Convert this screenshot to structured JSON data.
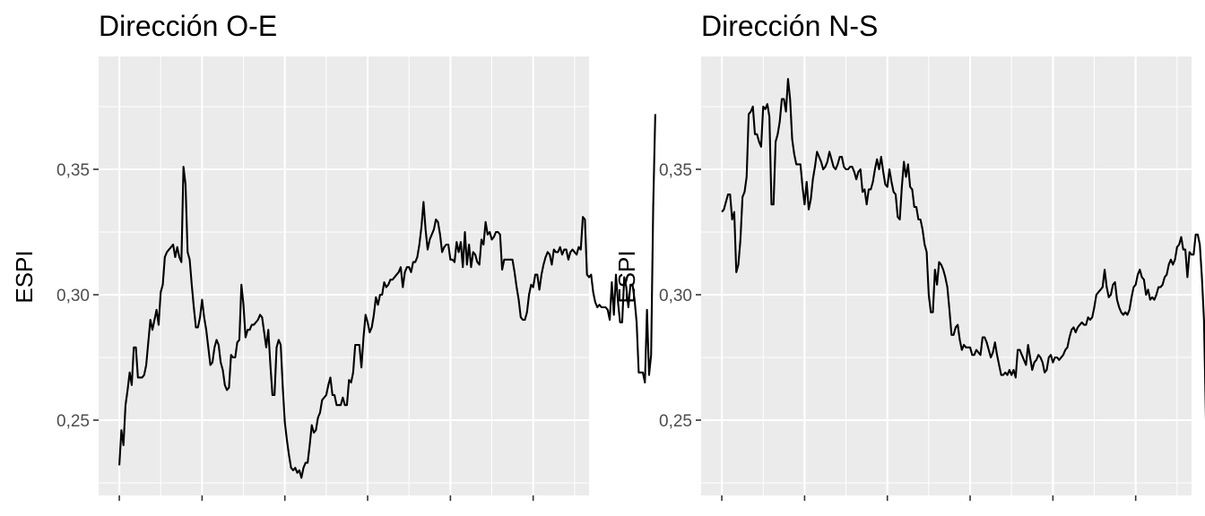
{
  "chart_data": [
    {
      "type": "line",
      "title": "Dirección O-E",
      "xlabel": "",
      "ylabel": "ESPI",
      "xlim": [
        -10,
        227
      ],
      "ylim": [
        0.22,
        0.395
      ],
      "y_ticks": [
        0.25,
        0.3,
        0.35
      ],
      "y_tick_labels": [
        "0,25",
        "0,30",
        "0,35"
      ],
      "x_ticks": [
        0,
        40,
        80,
        120,
        160,
        200
      ],
      "x_tick_labels": [
        "",
        "",
        "",
        "",
        "",
        ""
      ],
      "grid": true,
      "series": [
        {
          "values": [
            0.232,
            0.246,
            0.24,
            0.256,
            0.262,
            0.269,
            0.264,
            0.279,
            0.279,
            0.267,
            0.267,
            0.267,
            0.268,
            0.272,
            0.281,
            0.29,
            0.286,
            0.29,
            0.294,
            0.288,
            0.301,
            0.304,
            0.315,
            0.317,
            0.318,
            0.319,
            0.32,
            0.315,
            0.319,
            0.315,
            0.313,
            0.351,
            0.344,
            0.317,
            0.314,
            0.304,
            0.295,
            0.287,
            0.287,
            0.291,
            0.298,
            0.291,
            0.286,
            0.279,
            0.272,
            0.273,
            0.279,
            0.282,
            0.28,
            0.273,
            0.27,
            0.264,
            0.262,
            0.263,
            0.276,
            0.275,
            0.275,
            0.281,
            0.282,
            0.304,
            0.296,
            0.283,
            0.286,
            0.286,
            0.288,
            0.288,
            0.289,
            0.29,
            0.292,
            0.291,
            0.285,
            0.279,
            0.286,
            0.272,
            0.26,
            0.26,
            0.279,
            0.282,
            0.28,
            0.263,
            0.249,
            0.242,
            0.236,
            0.231,
            0.23,
            0.231,
            0.229,
            0.23,
            0.227,
            0.231,
            0.233,
            0.233,
            0.24,
            0.248,
            0.245,
            0.246,
            0.251,
            0.253,
            0.258,
            0.259,
            0.26,
            0.264,
            0.267,
            0.26,
            0.26,
            0.256,
            0.256,
            0.256,
            0.259,
            0.256,
            0.256,
            0.266,
            0.265,
            0.269,
            0.28,
            0.28,
            0.28,
            0.271,
            0.283,
            0.292,
            0.289,
            0.285,
            0.287,
            0.292,
            0.299,
            0.296,
            0.3,
            0.3,
            0.305,
            0.303,
            0.304,
            0.306,
            0.306,
            0.307,
            0.308,
            0.309,
            0.311,
            0.303,
            0.309,
            0.311,
            0.311,
            0.309,
            0.313,
            0.313,
            0.315,
            0.32,
            0.327,
            0.337,
            0.326,
            0.318,
            0.322,
            0.324,
            0.326,
            0.33,
            0.329,
            0.324,
            0.317,
            0.319,
            0.32,
            0.32,
            0.314,
            0.314,
            0.313,
            0.321,
            0.317,
            0.321,
            0.311,
            0.325,
            0.312,
            0.32,
            0.311,
            0.317,
            0.316,
            0.313,
            0.312,
            0.322,
            0.32,
            0.329,
            0.324,
            0.325,
            0.322,
            0.323,
            0.325,
            0.325,
            0.324,
            0.31,
            0.314,
            0.314,
            0.314,
            0.314,
            0.314,
            0.309,
            0.303,
            0.298,
            0.291,
            0.29,
            0.29,
            0.293,
            0.3,
            0.304,
            0.303,
            0.308,
            0.308,
            0.302,
            0.308,
            0.312,
            0.315,
            0.317,
            0.316,
            0.312,
            0.318,
            0.317,
            0.317,
            0.319,
            0.316,
            0.318,
            0.318,
            0.314,
            0.317,
            0.318,
            0.317,
            0.316,
            0.319,
            0.318,
            0.331,
            0.33,
            0.308,
            0.307,
            0.308,
            0.301,
            0.297,
            0.295,
            0.296,
            0.295,
            0.295,
            0.295,
            0.294,
            0.29,
            0.305,
            0.292,
            0.308,
            0.297,
            0.289,
            0.289,
            0.307,
            0.303,
            0.295,
            0.304,
            0.304,
            0.298,
            0.289,
            0.269,
            0.269,
            0.269,
            0.265,
            0.294,
            0.268,
            0.276,
            0.335,
            0.372
          ]
        }
      ]
    },
    {
      "type": "line",
      "title": "Dirección N-S",
      "xlabel": "",
      "ylabel": "ESPI",
      "xlim": [
        -10,
        227
      ],
      "ylim": [
        0.22,
        0.395
      ],
      "y_ticks": [
        0.25,
        0.3,
        0.35
      ],
      "y_tick_labels": [
        "0,25",
        "0,30",
        "0,35"
      ],
      "x_ticks": [
        0,
        40,
        80,
        120,
        160,
        200
      ],
      "x_tick_labels": [
        "",
        "",
        "",
        "",
        "",
        ""
      ],
      "grid": true,
      "series": [
        {
          "values": [
            0.333,
            0.334,
            0.337,
            0.34,
            0.34,
            0.33,
            0.333,
            0.309,
            0.312,
            0.322,
            0.339,
            0.341,
            0.347,
            0.372,
            0.373,
            0.375,
            0.364,
            0.364,
            0.361,
            0.359,
            0.375,
            0.374,
            0.376,
            0.371,
            0.336,
            0.336,
            0.361,
            0.364,
            0.369,
            0.378,
            0.378,
            0.373,
            0.386,
            0.378,
            0.362,
            0.356,
            0.352,
            0.352,
            0.352,
            0.343,
            0.336,
            0.345,
            0.334,
            0.338,
            0.346,
            0.351,
            0.357,
            0.355,
            0.353,
            0.35,
            0.351,
            0.353,
            0.357,
            0.354,
            0.351,
            0.35,
            0.352,
            0.355,
            0.355,
            0.351,
            0.35,
            0.35,
            0.351,
            0.351,
            0.349,
            0.346,
            0.349,
            0.35,
            0.341,
            0.342,
            0.336,
            0.342,
            0.342,
            0.345,
            0.35,
            0.354,
            0.35,
            0.355,
            0.349,
            0.344,
            0.343,
            0.35,
            0.345,
            0.341,
            0.34,
            0.331,
            0.33,
            0.343,
            0.353,
            0.347,
            0.352,
            0.343,
            0.342,
            0.335,
            0.335,
            0.33,
            0.33,
            0.326,
            0.32,
            0.317,
            0.3,
            0.293,
            0.293,
            0.31,
            0.304,
            0.313,
            0.312,
            0.31,
            0.307,
            0.303,
            0.294,
            0.284,
            0.284,
            0.287,
            0.288,
            0.282,
            0.278,
            0.28,
            0.279,
            0.279,
            0.279,
            0.276,
            0.276,
            0.278,
            0.277,
            0.276,
            0.283,
            0.283,
            0.281,
            0.278,
            0.275,
            0.277,
            0.281,
            0.276,
            0.272,
            0.268,
            0.268,
            0.269,
            0.268,
            0.27,
            0.268,
            0.27,
            0.267,
            0.278,
            0.278,
            0.276,
            0.274,
            0.272,
            0.28,
            0.275,
            0.27,
            0.273,
            0.274,
            0.276,
            0.275,
            0.273,
            0.269,
            0.27,
            0.275,
            0.276,
            0.273,
            0.275,
            0.275,
            0.274,
            0.275,
            0.276,
            0.278,
            0.279,
            0.283,
            0.286,
            0.287,
            0.285,
            0.287,
            0.288,
            0.289,
            0.288,
            0.288,
            0.291,
            0.29,
            0.291,
            0.295,
            0.3,
            0.301,
            0.302,
            0.303,
            0.31,
            0.303,
            0.299,
            0.3,
            0.304,
            0.305,
            0.298,
            0.295,
            0.293,
            0.292,
            0.293,
            0.292,
            0.294,
            0.299,
            0.303,
            0.304,
            0.308,
            0.31,
            0.307,
            0.306,
            0.3,
            0.302,
            0.298,
            0.299,
            0.298,
            0.3,
            0.303,
            0.303,
            0.304,
            0.307,
            0.308,
            0.312,
            0.314,
            0.312,
            0.314,
            0.319,
            0.32,
            0.323,
            0.318,
            0.318,
            0.307,
            0.317,
            0.316,
            0.316,
            0.324,
            0.324,
            0.32,
            0.307,
            0.29,
            0.248
          ]
        }
      ]
    }
  ]
}
